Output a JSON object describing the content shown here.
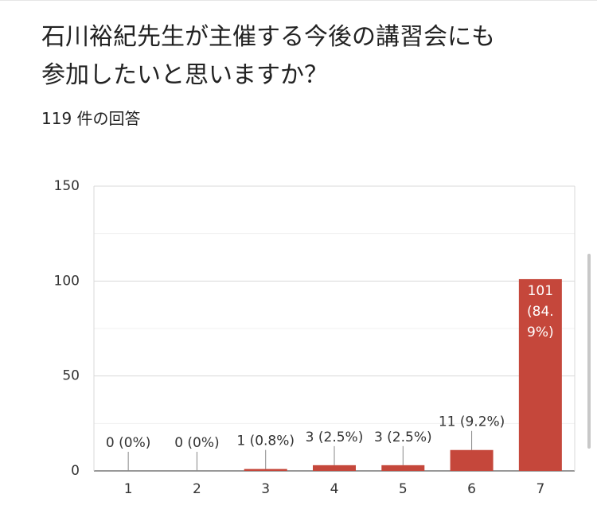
{
  "chart_data": {
    "type": "bar",
    "title": "石川裕紀先生が主催する今後の講習会にも参加したいと思いますか？",
    "subtitle": "119 件の回答",
    "categories": [
      "1",
      "2",
      "3",
      "4",
      "5",
      "6",
      "7"
    ],
    "values": [
      0,
      0,
      1,
      3,
      3,
      11,
      101
    ],
    "value_labels": [
      "0 (0%)",
      "0 (0%)",
      "1 (0.8%)",
      "3 (2.5%)",
      "3 (2.5%)",
      "11 (9.2%)",
      "101 (84.9%)"
    ],
    "color": "#c5473b",
    "ylim": [
      0,
      150
    ],
    "yticks": [
      0,
      50,
      100,
      150
    ],
    "minor_yticks": [
      25,
      75,
      125
    ],
    "grid": true
  }
}
